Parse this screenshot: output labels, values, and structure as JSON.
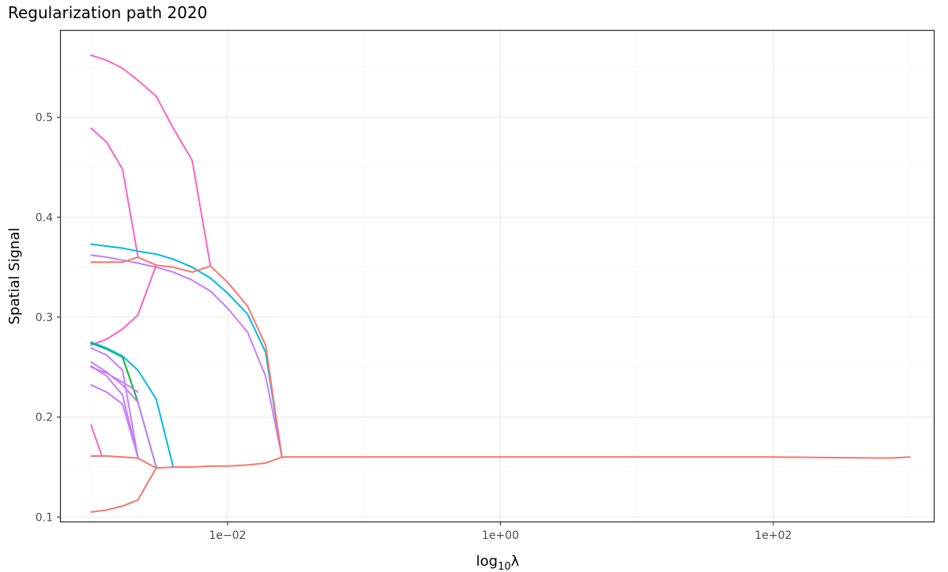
{
  "chart_data": {
    "type": "line",
    "title": "Regularization path 2020",
    "xlabel": "log",
    "xlabel_subscript": "10",
    "xlabel_suffix": "λ",
    "ylabel": "Spatial Signal",
    "xscale": "log10",
    "xlim": [
      0.0006,
      1500
    ],
    "ylim": [
      0.0955,
      0.5865
    ],
    "grid": true,
    "legend": "none",
    "x_ticks": [
      {
        "value": 0.01,
        "label": "1e−02"
      },
      {
        "value": 1,
        "label": "1e+00"
      },
      {
        "value": 100,
        "label": "1e+02"
      }
    ],
    "y_ticks": [
      {
        "value": 0.1,
        "label": "0.1"
      },
      {
        "value": 0.2,
        "label": "0.2"
      },
      {
        "value": 0.3,
        "label": "0.3"
      },
      {
        "value": 0.4,
        "label": "0.4"
      },
      {
        "value": 0.5,
        "label": "0.5"
      }
    ],
    "series": [
      {
        "color": "#ff61c3",
        "x": [
          0.001,
          0.0013,
          0.0017,
          0.0022,
          0.003,
          0.004,
          0.0055,
          0.0075
        ],
        "y": [
          0.562,
          0.557,
          0.549,
          0.537,
          0.521,
          0.489,
          0.457,
          0.351
        ]
      },
      {
        "color": "#ff61c3",
        "x": [
          0.001,
          0.0013,
          0.0017,
          0.0022
        ],
        "y": [
          0.489,
          0.475,
          0.448,
          0.361
        ]
      },
      {
        "color": "#00b8e5",
        "x": [
          0.001,
          0.0013,
          0.0017,
          0.0022,
          0.003,
          0.004,
          0.0055,
          0.0075,
          0.01,
          0.014,
          0.019,
          0.025
        ],
        "y": [
          0.373,
          0.371,
          0.369,
          0.366,
          0.363,
          0.358,
          0.35,
          0.339,
          0.324,
          0.303,
          0.265,
          0.16
        ]
      },
      {
        "color": "#c77cff",
        "x": [
          0.001,
          0.0013,
          0.0017,
          0.0022,
          0.003,
          0.004,
          0.0055,
          0.0075,
          0.01,
          0.014,
          0.019,
          0.025
        ],
        "y": [
          0.362,
          0.36,
          0.357,
          0.354,
          0.35,
          0.345,
          0.337,
          0.326,
          0.309,
          0.285,
          0.241,
          0.16
        ]
      },
      {
        "color": "#ff61c3",
        "x": [
          0.001,
          0.0013,
          0.0017,
          0.0022,
          0.003
        ],
        "y": [
          0.272,
          0.278,
          0.288,
          0.302,
          0.352
        ]
      },
      {
        "color": "#f8766d",
        "x": [
          0.001,
          0.0013,
          0.0017,
          0.0022,
          0.003,
          0.004,
          0.0055,
          0.0075,
          0.01,
          0.014,
          0.019,
          0.025
        ],
        "y": [
          0.355,
          0.355,
          0.355,
          0.36,
          0.352,
          0.35,
          0.345,
          0.351,
          0.335,
          0.311,
          0.272,
          0.16
        ]
      },
      {
        "color": "#00ba38",
        "x": [
          0.001,
          0.0013,
          0.0017,
          0.0022,
          0.003
        ],
        "y": [
          0.274,
          0.268,
          0.26,
          0.215,
          0.15
        ]
      },
      {
        "color": "#00b8e5",
        "x": [
          0.001,
          0.0013,
          0.0017,
          0.0022,
          0.003,
          0.004
        ],
        "y": [
          0.275,
          0.269,
          0.261,
          0.247,
          0.218,
          0.15
        ]
      },
      {
        "color": "#c77cff",
        "x": [
          0.001,
          0.0013,
          0.0017,
          0.0022
        ],
        "y": [
          0.269,
          0.262,
          0.247,
          0.16
        ]
      },
      {
        "color": "#c77cff",
        "x": [
          0.001,
          0.0013,
          0.0017,
          0.0022,
          0.003
        ],
        "y": [
          0.255,
          0.245,
          0.232,
          0.215,
          0.15
        ]
      },
      {
        "color": "#c77cff",
        "x": [
          0.001,
          0.0013,
          0.0017,
          0.0022
        ],
        "y": [
          0.251,
          0.241,
          0.222,
          0.16
        ]
      },
      {
        "color": "#c77cff",
        "x": [
          0.001,
          0.0013,
          0.0017,
          0.0022
        ],
        "y": [
          0.25,
          0.244,
          0.235,
          0.225
        ]
      },
      {
        "color": "#c77cff",
        "x": [
          0.001,
          0.0013,
          0.0017,
          0.0022
        ],
        "y": [
          0.232,
          0.225,
          0.213,
          0.16
        ]
      },
      {
        "color": "#ff61c3",
        "x": [
          0.001,
          0.0012
        ],
        "y": [
          0.192,
          0.161
        ]
      },
      {
        "color": "#f8766d",
        "x": [
          0.001,
          0.0013,
          0.0017,
          0.0022,
          0.003,
          0.004,
          0.0055,
          0.0075,
          0.01,
          0.014,
          0.019,
          0.025,
          0.1,
          1,
          10,
          100,
          700,
          1000
        ],
        "y": [
          0.161,
          0.161,
          0.16,
          0.159,
          0.149,
          0.15,
          0.15,
          0.151,
          0.151,
          0.152,
          0.154,
          0.16,
          0.16,
          0.16,
          0.16,
          0.16,
          0.159,
          0.16
        ]
      },
      {
        "color": "#f8766d",
        "x": [
          0.001,
          0.0013,
          0.0017,
          0.0022,
          0.003
        ],
        "y": [
          0.105,
          0.107,
          0.111,
          0.117,
          0.149
        ]
      }
    ]
  }
}
